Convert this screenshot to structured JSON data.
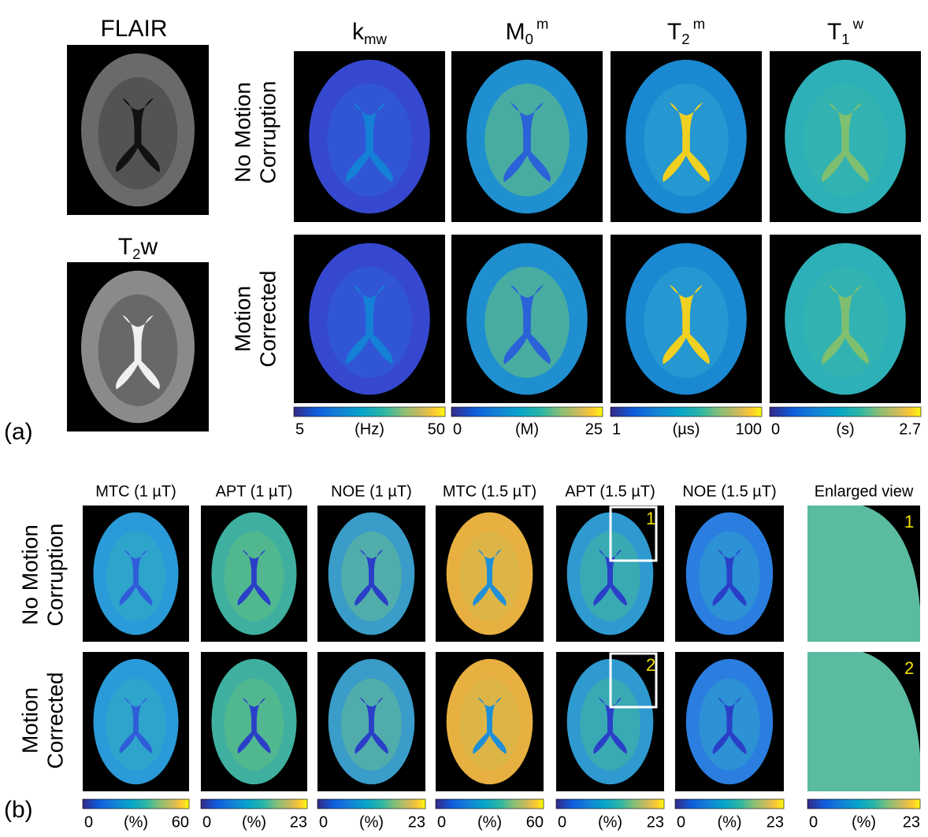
{
  "panel_a": {
    "label": "(a)",
    "anatomical": [
      {
        "main": "FLAIR"
      },
      {
        "main": "T",
        "sub": "2",
        "after": "w"
      }
    ],
    "columns": [
      {
        "main": "k",
        "sub": "mw"
      },
      {
        "main": "M",
        "sub": "0",
        "sup": "m"
      },
      {
        "main": "T",
        "sub": "2",
        "sup": "m"
      },
      {
        "main": "T",
        "sub": "1",
        "sup": "w"
      }
    ],
    "rows": [
      [
        "No Motion",
        "Corruption"
      ],
      [
        "Motion",
        "Corrected"
      ]
    ],
    "colorbars": [
      {
        "min": "5",
        "unit": "(Hz)",
        "max": "50"
      },
      {
        "min": "0",
        "unit": "(M)",
        "max": "25"
      },
      {
        "min": "1",
        "unit": "(µs)",
        "max": "100"
      },
      {
        "min": "0",
        "unit": "(s)",
        "max": "2.7"
      }
    ]
  },
  "panel_b": {
    "label": "(b)",
    "columns": [
      "MTC (1 µT)",
      "APT (1 µT)",
      "NOE (1 µT)",
      "MTC (1.5 µT)",
      "APT (1.5 µT)",
      "NOE (1.5 µT)",
      "Enlarged view"
    ],
    "rows": [
      [
        "No Motion",
        "Corruption"
      ],
      [
        "Motion",
        "Corrected"
      ]
    ],
    "box_labels": [
      "1",
      "2"
    ],
    "enlarged_labels": [
      "1",
      "2"
    ],
    "colorbars": [
      {
        "min": "0",
        "unit": "(%)",
        "max": "60"
      },
      {
        "min": "0",
        "unit": "(%)",
        "max": "23"
      },
      {
        "min": "0",
        "unit": "(%)",
        "max": "23"
      },
      {
        "min": "0",
        "unit": "(%)",
        "max": "60"
      },
      {
        "min": "0",
        "unit": "(%)",
        "max": "23"
      },
      {
        "min": "0",
        "unit": "(%)",
        "max": "23"
      },
      {
        "min": "0",
        "unit": "(%)",
        "max": "23"
      }
    ]
  }
}
